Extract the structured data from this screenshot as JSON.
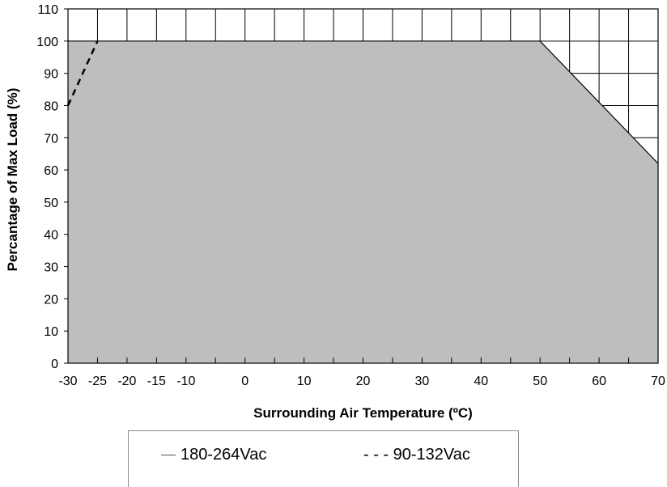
{
  "chart_data": {
    "type": "area",
    "title": "",
    "xlabel": "Surrounding Air Temperature (ºC)",
    "ylabel": "Percantage of Max Load (%)",
    "xlim": [
      -30,
      70
    ],
    "ylim": [
      0,
      110
    ],
    "x_ticks": [
      -30,
      -25,
      -20,
      -15,
      -10,
      0,
      10,
      20,
      30,
      40,
      50,
      60,
      70
    ],
    "x_tick_labels": [
      "-30",
      "-25",
      "-20",
      "-15",
      "-10",
      "0",
      "10",
      "20",
      "30",
      "40",
      "50",
      "60",
      "70"
    ],
    "y_ticks": [
      0,
      10,
      20,
      30,
      40,
      50,
      60,
      70,
      80,
      90,
      100,
      110
    ],
    "y_tick_labels": [
      "0",
      "10",
      "20",
      "30",
      "40",
      "50",
      "60",
      "70",
      "80",
      "90",
      "100",
      "110"
    ],
    "grid": true,
    "legend_position": "bottom",
    "series": [
      {
        "name": "180-264Vac",
        "style": "solid",
        "x": [
          -30,
          50,
          70
        ],
        "y": [
          100,
          100,
          62
        ]
      },
      {
        "name": "90-132Vac",
        "style": "dashed",
        "x": [
          -30,
          -25
        ],
        "y": [
          80,
          100
        ]
      }
    ],
    "colors": {
      "fill": "#bcbec0",
      "line": "#000000"
    }
  },
  "legend": {
    "item_1": "180-264Vac",
    "item_2": "- - - 90-132Vac"
  }
}
